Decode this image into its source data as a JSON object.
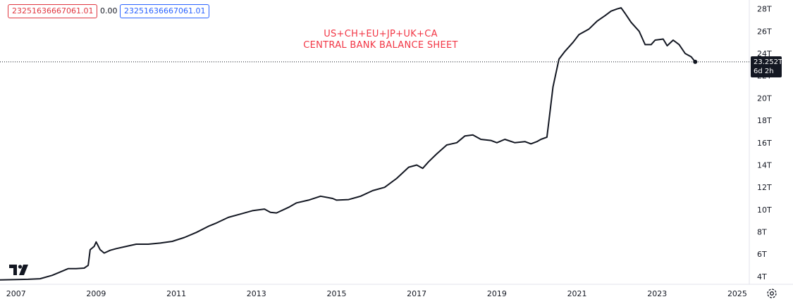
{
  "legend": {
    "value_a": "23251636667061.01",
    "value_mid": "0.00",
    "value_b": "23251636667061.01"
  },
  "last_price": {
    "value": "23.252T",
    "countdown": "6d 2h"
  },
  "colors": {
    "line": "#131722",
    "title": "#f23645",
    "legend_a": "#e0363f",
    "legend_b": "#2962ff",
    "axis_text": "#131722"
  },
  "icons": {
    "logo": "tradingview-logo-icon",
    "settings": "gear-icon"
  },
  "chart_data": {
    "type": "line",
    "title": "US+CH+EU+JP+UK+CA",
    "subtitle": "CENTRAL BANK BALANCE SHEET",
    "xlabel": "",
    "ylabel": "",
    "x_ticks": [
      "2007",
      "2009",
      "2011",
      "2013",
      "2015",
      "2017",
      "2019",
      "2021",
      "2023",
      "2025"
    ],
    "y_ticks": [
      "4T",
      "6T",
      "8T",
      "10T",
      "12T",
      "14T",
      "16T",
      "18T",
      "20T",
      "22T",
      "24T",
      "26T",
      "28T"
    ],
    "y_unit": "trillion USD",
    "xlim": [
      2006.6,
      2025.3
    ],
    "ylim": [
      3.3,
      28.8
    ],
    "grid": false,
    "series": [
      {
        "values": [
          [
            2006.6,
            3.7
          ],
          [
            2007.0,
            3.72
          ],
          [
            2007.3,
            3.75
          ],
          [
            2007.6,
            3.8
          ],
          [
            2007.9,
            4.1
          ],
          [
            2008.1,
            4.4
          ],
          [
            2008.3,
            4.7
          ],
          [
            2008.5,
            4.7
          ],
          [
            2008.7,
            4.75
          ],
          [
            2008.8,
            5.0
          ],
          [
            2008.85,
            6.4
          ],
          [
            2008.95,
            6.7
          ],
          [
            2009.0,
            7.1
          ],
          [
            2009.1,
            6.4
          ],
          [
            2009.2,
            6.1
          ],
          [
            2009.35,
            6.35
          ],
          [
            2009.5,
            6.5
          ],
          [
            2009.75,
            6.7
          ],
          [
            2010.0,
            6.9
          ],
          [
            2010.3,
            6.9
          ],
          [
            2010.6,
            7.0
          ],
          [
            2010.9,
            7.15
          ],
          [
            2011.2,
            7.5
          ],
          [
            2011.5,
            7.95
          ],
          [
            2011.8,
            8.5
          ],
          [
            2012.0,
            8.8
          ],
          [
            2012.3,
            9.3
          ],
          [
            2012.6,
            9.6
          ],
          [
            2012.9,
            9.9
          ],
          [
            2013.2,
            10.05
          ],
          [
            2013.35,
            9.75
          ],
          [
            2013.5,
            9.7
          ],
          [
            2013.8,
            10.2
          ],
          [
            2014.0,
            10.6
          ],
          [
            2014.3,
            10.85
          ],
          [
            2014.6,
            11.2
          ],
          [
            2014.9,
            11.0
          ],
          [
            2015.0,
            10.85
          ],
          [
            2015.3,
            10.9
          ],
          [
            2015.6,
            11.2
          ],
          [
            2015.9,
            11.7
          ],
          [
            2016.2,
            12.0
          ],
          [
            2016.5,
            12.8
          ],
          [
            2016.8,
            13.8
          ],
          [
            2017.0,
            14.0
          ],
          [
            2017.15,
            13.7
          ],
          [
            2017.3,
            14.3
          ],
          [
            2017.5,
            15.0
          ],
          [
            2017.75,
            15.8
          ],
          [
            2018.0,
            16.0
          ],
          [
            2018.2,
            16.6
          ],
          [
            2018.4,
            16.7
          ],
          [
            2018.6,
            16.3
          ],
          [
            2018.85,
            16.2
          ],
          [
            2019.0,
            16.0
          ],
          [
            2019.2,
            16.3
          ],
          [
            2019.45,
            16.0
          ],
          [
            2019.7,
            16.1
          ],
          [
            2019.85,
            15.9
          ],
          [
            2020.0,
            16.1
          ],
          [
            2020.1,
            16.3
          ],
          [
            2020.25,
            16.5
          ],
          [
            2020.3,
            18.0
          ],
          [
            2020.4,
            21.0
          ],
          [
            2020.55,
            23.5
          ],
          [
            2020.7,
            24.2
          ],
          [
            2020.9,
            25.0
          ],
          [
            2021.05,
            25.7
          ],
          [
            2021.3,
            26.2
          ],
          [
            2021.5,
            26.9
          ],
          [
            2021.7,
            27.4
          ],
          [
            2021.85,
            27.8
          ],
          [
            2022.0,
            28.0
          ],
          [
            2022.1,
            28.1
          ],
          [
            2022.2,
            27.6
          ],
          [
            2022.35,
            26.8
          ],
          [
            2022.55,
            26.0
          ],
          [
            2022.7,
            24.8
          ],
          [
            2022.85,
            24.8
          ],
          [
            2022.95,
            25.2
          ],
          [
            2023.15,
            25.3
          ],
          [
            2023.25,
            24.7
          ],
          [
            2023.4,
            25.2
          ],
          [
            2023.55,
            24.8
          ],
          [
            2023.7,
            24.0
          ],
          [
            2023.85,
            23.7
          ],
          [
            2023.95,
            23.25
          ]
        ]
      }
    ]
  }
}
